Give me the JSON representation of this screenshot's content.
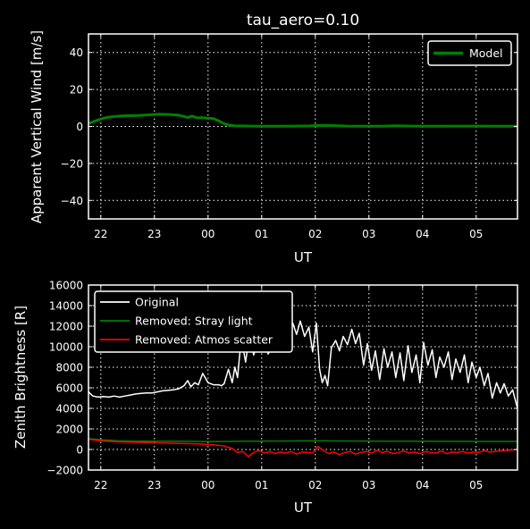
{
  "chart_data": [
    {
      "type": "line",
      "title": "tau_aero=0.10",
      "xlabel": "UT",
      "ylabel": "Apparent Vertical Wind [m/s]",
      "x_ticks": [
        "22",
        "23",
        "00",
        "01",
        "02",
        "03",
        "04",
        "05"
      ],
      "x_tick_positions_hours": [
        22,
        23,
        24,
        25,
        26,
        27,
        28,
        29
      ],
      "xlim_hours": [
        21.77,
        29.77
      ],
      "ylim": [
        -50,
        50
      ],
      "y_ticks": [
        -40,
        -20,
        0,
        20,
        40
      ],
      "y_tick_labels": [
        "−40",
        "−20",
        "0",
        "20",
        "40"
      ],
      "grid": true,
      "legend_position": "upper right",
      "series": [
        {
          "name": "Model",
          "color": "#008000",
          "linewidth": 3,
          "x": [
            21.77,
            21.9,
            22.0,
            22.1,
            22.2,
            22.35,
            22.5,
            22.7,
            22.9,
            23.1,
            23.3,
            23.45,
            23.55,
            23.62,
            23.7,
            23.8,
            23.9,
            24.0,
            24.1,
            24.2,
            24.3,
            24.4,
            24.5,
            24.6,
            24.8,
            25.0,
            25.3,
            25.6,
            25.9,
            26.1,
            26.3,
            26.6,
            27.0,
            27.3,
            27.5,
            27.8,
            28.2,
            28.6,
            29.0,
            29.4,
            29.77
          ],
          "y": [
            1.5,
            3.0,
            4.0,
            4.8,
            5.2,
            5.6,
            5.8,
            5.9,
            6.3,
            6.6,
            6.4,
            6.1,
            5.4,
            4.8,
            5.6,
            4.6,
            4.8,
            4.4,
            4.3,
            3.0,
            1.5,
            0.7,
            0.4,
            0.3,
            0.2,
            0.1,
            0.1,
            0.2,
            0.3,
            0.6,
            0.5,
            0.2,
            0.1,
            0.2,
            0.4,
            0.2,
            0.1,
            0.2,
            0.2,
            0.1,
            0.1
          ]
        }
      ]
    },
    {
      "type": "line",
      "title": "",
      "xlabel": "UT",
      "ylabel": "Zenith Brightness [R]",
      "x_ticks": [
        "22",
        "23",
        "00",
        "01",
        "02",
        "03",
        "04",
        "05"
      ],
      "x_tick_positions_hours": [
        22,
        23,
        24,
        25,
        26,
        27,
        28,
        29
      ],
      "xlim_hours": [
        21.77,
        29.77
      ],
      "ylim": [
        -2000,
        16000
      ],
      "y_ticks": [
        -2000,
        0,
        2000,
        4000,
        6000,
        8000,
        10000,
        12000,
        14000,
        16000
      ],
      "y_tick_labels": [
        "−2000",
        "0",
        "2000",
        "4000",
        "6000",
        "8000",
        "10000",
        "12000",
        "14000",
        "16000"
      ],
      "grid": true,
      "legend_position": "upper left",
      "series": [
        {
          "name": "Original",
          "color": "#ffffff",
          "linewidth": 1.5,
          "x": [
            21.77,
            21.85,
            21.95,
            22.05,
            22.15,
            22.25,
            22.35,
            22.45,
            22.55,
            22.65,
            22.75,
            22.85,
            22.95,
            23.05,
            23.15,
            23.25,
            23.35,
            23.45,
            23.55,
            23.62,
            23.68,
            23.75,
            23.82,
            23.9,
            24.0,
            24.1,
            24.2,
            24.25,
            24.3,
            24.38,
            24.45,
            24.5,
            24.55,
            24.62,
            24.7,
            24.78,
            24.85,
            24.92,
            25.0,
            25.05,
            25.12,
            25.2,
            25.28,
            25.35,
            25.42,
            25.5,
            25.58,
            25.65,
            25.72,
            25.8,
            25.88,
            25.95,
            26.02,
            26.08,
            26.13,
            26.18,
            26.23,
            26.3,
            26.38,
            26.45,
            26.52,
            26.6,
            26.68,
            26.75,
            26.82,
            26.9,
            26.97,
            27.05,
            27.12,
            27.2,
            27.28,
            27.35,
            27.43,
            27.5,
            27.58,
            27.65,
            27.73,
            27.8,
            27.88,
            27.95,
            28.02,
            28.1,
            28.18,
            28.25,
            28.32,
            28.4,
            28.48,
            28.55,
            28.62,
            28.7,
            28.78,
            28.85,
            28.92,
            29.0,
            29.07,
            29.15,
            29.22,
            29.3,
            29.38,
            29.45,
            29.52,
            29.6,
            29.68,
            29.77
          ],
          "y": [
            5600,
            5200,
            5100,
            5150,
            5100,
            5200,
            5100,
            5200,
            5300,
            5400,
            5450,
            5500,
            5500,
            5600,
            5700,
            5750,
            5800,
            5900,
            6200,
            6700,
            6100,
            6500,
            6300,
            7400,
            6500,
            6300,
            6300,
            6200,
            6400,
            7800,
            6500,
            8000,
            7000,
            10900,
            8500,
            11500,
            9200,
            10300,
            9800,
            11000,
            9300,
            10000,
            11700,
            9500,
            12000,
            11000,
            12300,
            11200,
            12500,
            11000,
            11900,
            9500,
            12300,
            7800,
            6500,
            7200,
            6200,
            9900,
            10600,
            9600,
            11000,
            10200,
            11700,
            10300,
            11300,
            8200,
            10300,
            7700,
            9600,
            6800,
            9800,
            8000,
            9500,
            7000,
            9400,
            6700,
            10100,
            7500,
            9200,
            6500,
            10400,
            8200,
            9700,
            7000,
            9000,
            8000,
            9500,
            6800,
            8800,
            7500,
            9200,
            6500,
            8500,
            7000,
            8000,
            6200,
            7400,
            5000,
            6500,
            5500,
            6400,
            5200,
            5800,
            4000
          ]
        },
        {
          "name": "Removed: Stray light",
          "color": "#008000",
          "linewidth": 1.5,
          "x": [
            21.77,
            22.0,
            22.3,
            22.6,
            23.0,
            23.4,
            23.8,
            24.0,
            24.2,
            24.4,
            24.6,
            25.0,
            25.5,
            26.0,
            26.5,
            27.0,
            27.5,
            28.0,
            28.5,
            29.0,
            29.5,
            29.77
          ],
          "y": [
            1050,
            950,
            850,
            800,
            800,
            800,
            780,
            770,
            770,
            780,
            800,
            820,
            830,
            840,
            830,
            820,
            810,
            800,
            790,
            780,
            780,
            780
          ]
        },
        {
          "name": "Removed: Atmos scatter",
          "color": "#ff0000",
          "linewidth": 1.5,
          "x": [
            21.77,
            22.0,
            22.3,
            22.6,
            23.0,
            23.4,
            23.8,
            24.1,
            24.3,
            24.45,
            24.55,
            24.65,
            24.75,
            24.85,
            24.95,
            25.05,
            25.15,
            25.25,
            25.35,
            25.45,
            25.55,
            25.65,
            25.75,
            25.85,
            25.95,
            26.05,
            26.15,
            26.25,
            26.35,
            26.45,
            26.55,
            26.65,
            26.75,
            26.85,
            26.95,
            27.05,
            27.15,
            27.25,
            27.35,
            27.45,
            27.55,
            27.65,
            27.75,
            27.85,
            27.95,
            28.05,
            28.15,
            28.25,
            28.35,
            28.45,
            28.55,
            28.65,
            28.75,
            28.85,
            28.95,
            29.05,
            29.15,
            29.25,
            29.35,
            29.45,
            29.55,
            29.65,
            29.77
          ],
          "y": [
            1000,
            850,
            750,
            700,
            650,
            600,
            550,
            450,
            350,
            100,
            -300,
            -200,
            -700,
            -300,
            -100,
            -350,
            -200,
            -400,
            -250,
            -350,
            -200,
            -450,
            -250,
            -300,
            -350,
            300,
            -100,
            -400,
            -250,
            -500,
            -300,
            -200,
            -450,
            -300,
            -200,
            -350,
            -100,
            -300,
            -200,
            -400,
            -300,
            -150,
            -350,
            -250,
            -400,
            -200,
            -300,
            -350,
            -150,
            -400,
            -250,
            -300,
            -200,
            -350,
            -250,
            -300,
            -100,
            -250,
            -200,
            -150,
            -100,
            -50,
            0
          ]
        }
      ]
    }
  ]
}
